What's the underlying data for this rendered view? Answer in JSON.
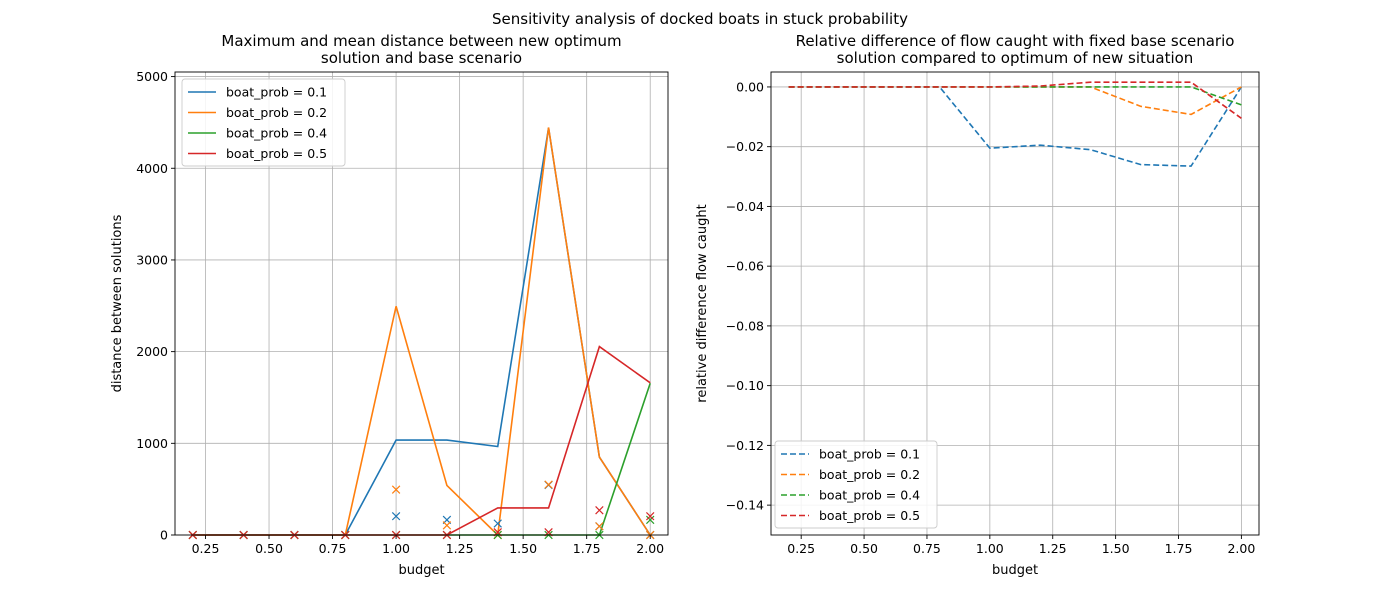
{
  "suptitle": "Sensitivity analysis of docked boats in stuck probability",
  "colors": {
    "0.1": "#1f77b4",
    "0.2": "#ff7f0e",
    "0.4": "#2ca02c",
    "0.5": "#d62728"
  },
  "chart_data": [
    {
      "type": "line",
      "title_line1": "Maximum and mean distance between new optimum",
      "title_line2": "solution and base scenario",
      "xlabel": "budget",
      "ylabel": "distance between solutions",
      "xlim": [
        0.13,
        2.07
      ],
      "ylim": [
        0,
        5050
      ],
      "xticks": [
        0.25,
        0.5,
        0.75,
        1.0,
        1.25,
        1.5,
        1.75,
        2.0
      ],
      "xtick_labels": [
        "0.25",
        "0.50",
        "0.75",
        "1.00",
        "1.25",
        "1.50",
        "1.75",
        "2.00"
      ],
      "yticks": [
        0,
        1000,
        2000,
        3000,
        4000,
        5000
      ],
      "ytick_labels": [
        "0",
        "1000",
        "2000",
        "3000",
        "4000",
        "5000"
      ],
      "grid": true,
      "legend_loc": "upper left",
      "x": [
        0.2,
        0.4,
        0.6,
        0.8,
        1.0,
        1.2,
        1.4,
        1.6,
        1.8,
        2.0
      ],
      "series": [
        {
          "name": "boat_prob = 0.1",
          "key": "0.1",
          "style": "solid",
          "values": [
            0,
            0,
            0,
            0,
            1035,
            1035,
            965,
            4440,
            850,
            0
          ],
          "markers": [
            0,
            0,
            0,
            0,
            205,
            165,
            125,
            545,
            95,
            0
          ]
        },
        {
          "name": "boat_prob = 0.2",
          "key": "0.2",
          "style": "solid",
          "values": [
            0,
            0,
            0,
            0,
            2495,
            540,
            0,
            4445,
            850,
            0
          ],
          "markers": [
            0,
            0,
            0,
            0,
            495,
            105,
            0,
            550,
            95,
            0
          ]
        },
        {
          "name": "boat_prob = 0.4",
          "key": "0.4",
          "style": "solid",
          "values": [
            0,
            0,
            0,
            0,
            0,
            0,
            0,
            0,
            0,
            1655
          ],
          "markers": [
            0,
            0,
            0,
            0,
            0,
            0,
            0,
            0,
            0,
            165
          ]
        },
        {
          "name": "boat_prob = 0.5",
          "key": "0.5",
          "style": "solid",
          "values": [
            0,
            0,
            0,
            0,
            0,
            0,
            295,
            295,
            2055,
            1660
          ],
          "markers": [
            0,
            0,
            0,
            0,
            0,
            0,
            30,
            30,
            270,
            205
          ]
        }
      ]
    },
    {
      "type": "line",
      "title_line1": "Relative difference of flow caught with fixed base scenario",
      "title_line2": "solution compared to optimum of new situation",
      "xlabel": "budget",
      "ylabel": "relative difference flow caught",
      "xlim": [
        0.13,
        2.07
      ],
      "ylim": [
        -0.15,
        0.005
      ],
      "xticks": [
        0.25,
        0.5,
        0.75,
        1.0,
        1.25,
        1.5,
        1.75,
        2.0
      ],
      "xtick_labels": [
        "0.25",
        "0.50",
        "0.75",
        "1.00",
        "1.25",
        "1.50",
        "1.75",
        "2.00"
      ],
      "yticks": [
        0.0,
        -0.02,
        -0.04,
        -0.06,
        -0.08,
        -0.1,
        -0.12,
        -0.14
      ],
      "ytick_labels": [
        "0.00",
        "−0.02",
        "−0.04",
        "−0.06",
        "−0.08",
        "−0.10",
        "−0.12",
        "−0.14"
      ],
      "grid": true,
      "legend_loc": "lower left",
      "x": [
        0.2,
        0.4,
        0.6,
        0.8,
        1.0,
        1.2,
        1.4,
        1.6,
        1.8,
        2.0
      ],
      "series": [
        {
          "name": "boat_prob = 0.1",
          "key": "0.1",
          "style": "dashed",
          "values": [
            0,
            0,
            0,
            0,
            -0.0205,
            -0.0195,
            -0.021,
            -0.026,
            -0.0265,
            0
          ]
        },
        {
          "name": "boat_prob = 0.2",
          "key": "0.2",
          "style": "dashed",
          "values": [
            0,
            0,
            0,
            0,
            0,
            0,
            0,
            -0.0065,
            -0.0092,
            0
          ]
        },
        {
          "name": "boat_prob = 0.4",
          "key": "0.4",
          "style": "dashed",
          "values": [
            0,
            0,
            0,
            0,
            0,
            0,
            0,
            0,
            0,
            -0.006
          ]
        },
        {
          "name": "boat_prob = 0.5",
          "key": "0.5",
          "style": "dashed",
          "values": [
            0,
            0,
            0,
            0,
            0,
            0.0003,
            0.0016,
            0.0016,
            0.0016,
            -0.0105
          ]
        }
      ]
    }
  ]
}
